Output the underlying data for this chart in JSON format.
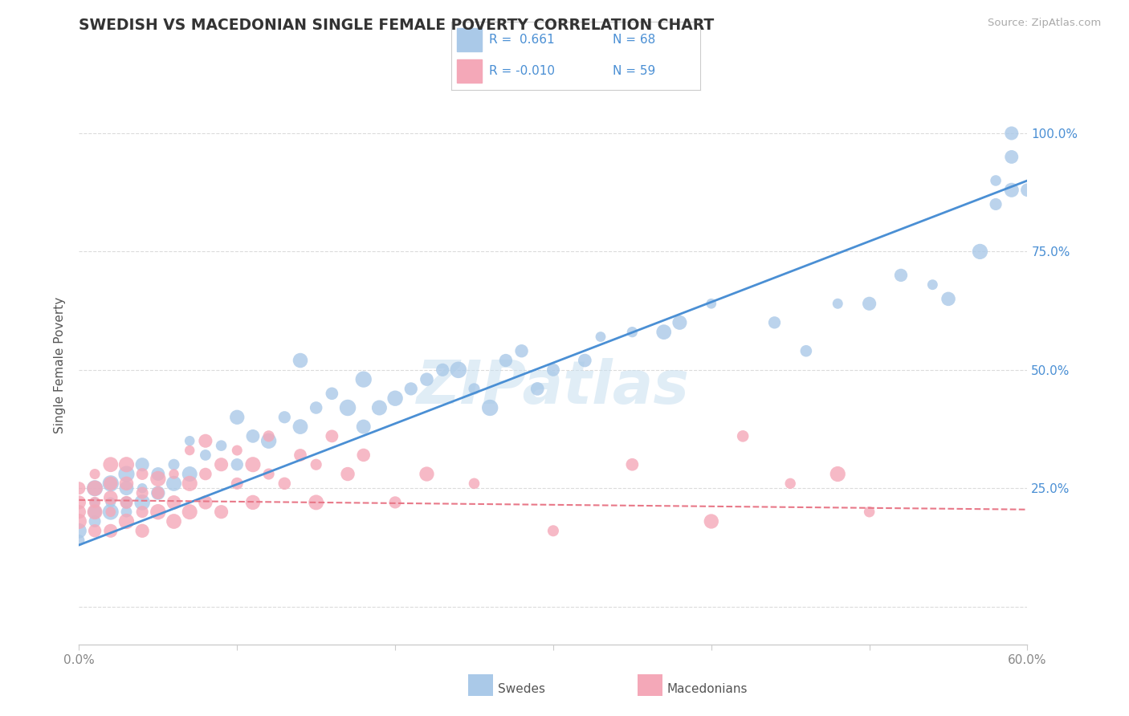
{
  "title": "SWEDISH VS MACEDONIAN SINGLE FEMALE POVERTY CORRELATION CHART",
  "source_text": "Source: ZipAtlas.com",
  "ylabel": "Single Female Poverty",
  "watermark": "ZIPatlas",
  "xlim": [
    0.0,
    0.6
  ],
  "ylim": [
    -0.08,
    1.1
  ],
  "x_tick_labels": [
    "0.0%",
    "",
    "",
    "",
    "",
    "",
    "60.0%"
  ],
  "y_tick_labels": [
    "",
    "25.0%",
    "50.0%",
    "75.0%",
    "100.0%"
  ],
  "swedish_color": "#aac9e8",
  "macedonian_color": "#f4a8b8",
  "swedish_line_color": "#4a8fd4",
  "macedonian_line_color": "#e87888",
  "legend_r_sw": "R =  0.661",
  "legend_n_sw": "N = 68",
  "legend_r_mac": "R = -0.010",
  "legend_n_mac": "N = 59",
  "r_color": "#4a8fd4",
  "n_color": "#4a8fd4",
  "grid_color": "#cccccc",
  "background_color": "#ffffff",
  "title_color": "#333333",
  "axis_label_color": "#555555",
  "right_tick_color": "#4a8fd4",
  "swedish_x": [
    0.0,
    0.0,
    0.01,
    0.01,
    0.01,
    0.01,
    0.02,
    0.02,
    0.02,
    0.03,
    0.03,
    0.03,
    0.03,
    0.04,
    0.04,
    0.04,
    0.05,
    0.05,
    0.06,
    0.06,
    0.07,
    0.07,
    0.08,
    0.09,
    0.1,
    0.1,
    0.11,
    0.12,
    0.13,
    0.14,
    0.14,
    0.15,
    0.16,
    0.17,
    0.18,
    0.18,
    0.19,
    0.2,
    0.21,
    0.22,
    0.23,
    0.24,
    0.25,
    0.26,
    0.27,
    0.28,
    0.29,
    0.3,
    0.32,
    0.33,
    0.35,
    0.37,
    0.38,
    0.4,
    0.44,
    0.46,
    0.48,
    0.5,
    0.52,
    0.54,
    0.55,
    0.57,
    0.58,
    0.58,
    0.59,
    0.59,
    0.59,
    0.6
  ],
  "swedish_y": [
    0.14,
    0.16,
    0.18,
    0.2,
    0.22,
    0.25,
    0.2,
    0.22,
    0.26,
    0.2,
    0.22,
    0.25,
    0.28,
    0.22,
    0.25,
    0.3,
    0.24,
    0.28,
    0.26,
    0.3,
    0.28,
    0.35,
    0.32,
    0.34,
    0.3,
    0.4,
    0.36,
    0.35,
    0.4,
    0.38,
    0.52,
    0.42,
    0.45,
    0.42,
    0.38,
    0.48,
    0.42,
    0.44,
    0.46,
    0.48,
    0.5,
    0.5,
    0.46,
    0.42,
    0.52,
    0.54,
    0.46,
    0.5,
    0.52,
    0.57,
    0.58,
    0.58,
    0.6,
    0.64,
    0.6,
    0.54,
    0.64,
    0.64,
    0.7,
    0.68,
    0.65,
    0.75,
    0.9,
    0.85,
    0.88,
    0.95,
    1.0,
    0.88
  ],
  "macedonian_x": [
    0.0,
    0.0,
    0.0,
    0.0,
    0.01,
    0.01,
    0.01,
    0.01,
    0.01,
    0.02,
    0.02,
    0.02,
    0.02,
    0.02,
    0.03,
    0.03,
    0.03,
    0.03,
    0.04,
    0.04,
    0.04,
    0.04,
    0.05,
    0.05,
    0.05,
    0.06,
    0.06,
    0.06,
    0.07,
    0.07,
    0.07,
    0.08,
    0.08,
    0.08,
    0.09,
    0.09,
    0.1,
    0.1,
    0.11,
    0.11,
    0.12,
    0.12,
    0.13,
    0.14,
    0.15,
    0.15,
    0.16,
    0.17,
    0.18,
    0.2,
    0.22,
    0.25,
    0.3,
    0.35,
    0.4,
    0.42,
    0.45,
    0.48,
    0.5
  ],
  "macedonian_y": [
    0.18,
    0.2,
    0.22,
    0.25,
    0.16,
    0.2,
    0.22,
    0.25,
    0.28,
    0.16,
    0.2,
    0.23,
    0.26,
    0.3,
    0.18,
    0.22,
    0.26,
    0.3,
    0.16,
    0.2,
    0.24,
    0.28,
    0.2,
    0.24,
    0.27,
    0.18,
    0.22,
    0.28,
    0.2,
    0.26,
    0.33,
    0.22,
    0.28,
    0.35,
    0.2,
    0.3,
    0.26,
    0.33,
    0.22,
    0.3,
    0.28,
    0.36,
    0.26,
    0.32,
    0.22,
    0.3,
    0.36,
    0.28,
    0.32,
    0.22,
    0.28,
    0.26,
    0.16,
    0.3,
    0.18,
    0.36,
    0.26,
    0.28,
    0.2
  ],
  "sw_line_x": [
    0.0,
    0.6
  ],
  "sw_line_y": [
    0.13,
    0.9
  ],
  "mac_line_x": [
    0.0,
    0.6
  ],
  "mac_line_y": [
    0.225,
    0.205
  ]
}
